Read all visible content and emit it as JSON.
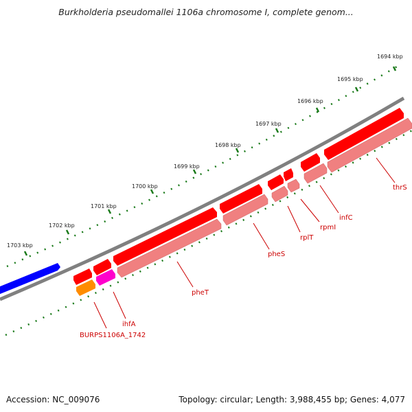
{
  "title": "Burkholderia pseudomallei 1106a chromosome I, complete genom...",
  "footer": {
    "accession": "Accession: NC_009076",
    "topology": "Topology: circular; Length: 3,988,455 bp; Genes: 4,077"
  },
  "colors": {
    "ruler": "#1a7a1a",
    "backbone": "#808080",
    "gene_forward": "#ff0000",
    "gene_pseudo": "#f08080",
    "blue_gene": "#0000ff",
    "orange_gene": "#ff8c00",
    "magenta_gene": "#ff00cc",
    "label": "#cc0000"
  },
  "ruler_ticks": [
    "1694 kbp",
    "1695 kbp",
    "1696 kbp",
    "1697 kbp",
    "1698 kbp",
    "1699 kbp",
    "1700 kbp",
    "1701 kbp",
    "1702 kbp",
    "1703 kbp"
  ],
  "gene_labels": [
    "thrS",
    "infC",
    "rpmI",
    "rplT",
    "pheS",
    "pheT",
    "ihfA",
    "BURPS1106A_1742"
  ]
}
